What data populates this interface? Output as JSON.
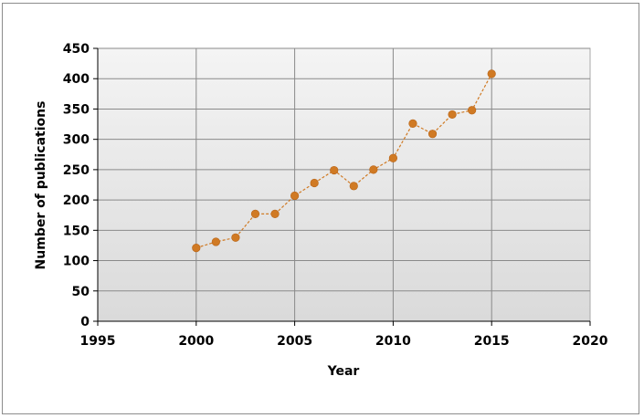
{
  "chart_data": {
    "type": "scatter",
    "title": "",
    "xlabel": "Year",
    "ylabel": "Number of publications",
    "xlim": [
      1995,
      2020
    ],
    "ylim": [
      0,
      450
    ],
    "x_ticks": [
      1995,
      2000,
      2005,
      2010,
      2015,
      2020
    ],
    "y_ticks": [
      0,
      50,
      100,
      150,
      200,
      250,
      300,
      350,
      400,
      450
    ],
    "grid": true,
    "legend": "none",
    "series": [
      {
        "x": [
          2000,
          2001,
          2002,
          2003,
          2004,
          2005,
          2006,
          2007,
          2008,
          2009,
          2010,
          2011,
          2012,
          2013,
          2014,
          2015
        ],
        "y": [
          121,
          131,
          138,
          177,
          177,
          207,
          228,
          249,
          223,
          250,
          269,
          326,
          309,
          341,
          348,
          408
        ],
        "color": "#d07a24",
        "line_style": "dashed"
      }
    ]
  }
}
